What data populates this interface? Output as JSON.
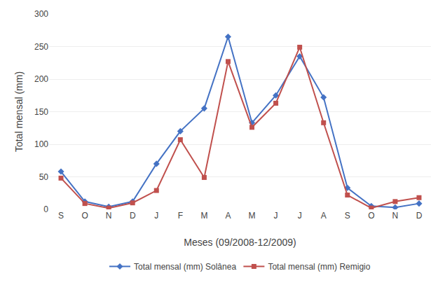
{
  "chart_data": {
    "type": "line",
    "categories": [
      "S",
      "O",
      "N",
      "D",
      "J",
      "F",
      "M",
      "A",
      "M",
      "J",
      "J",
      "A",
      "S",
      "O",
      "N",
      "D"
    ],
    "series": [
      {
        "name": "Total mensal (mm) Solânea",
        "color": "#4472C4",
        "marker": "diamond",
        "values": [
          58,
          12,
          4,
          12,
          70,
          120,
          155,
          265,
          133,
          175,
          235,
          172,
          33,
          5,
          3,
          9
        ]
      },
      {
        "name": "Total mensal (mm) Remigio",
        "color": "#C0504D",
        "marker": "square",
        "values": [
          48,
          9,
          2,
          10,
          29,
          107,
          49,
          227,
          126,
          163,
          249,
          133,
          22,
          2,
          12,
          18
        ]
      }
    ],
    "xlabel": "Meses (09/2008-12/2009)",
    "ylabel": "Total mensal (mm)",
    "ylim": [
      0,
      300
    ],
    "yticks": [
      0,
      50,
      100,
      150,
      200,
      250,
      300
    ],
    "grid": true,
    "legend": "bottom"
  }
}
